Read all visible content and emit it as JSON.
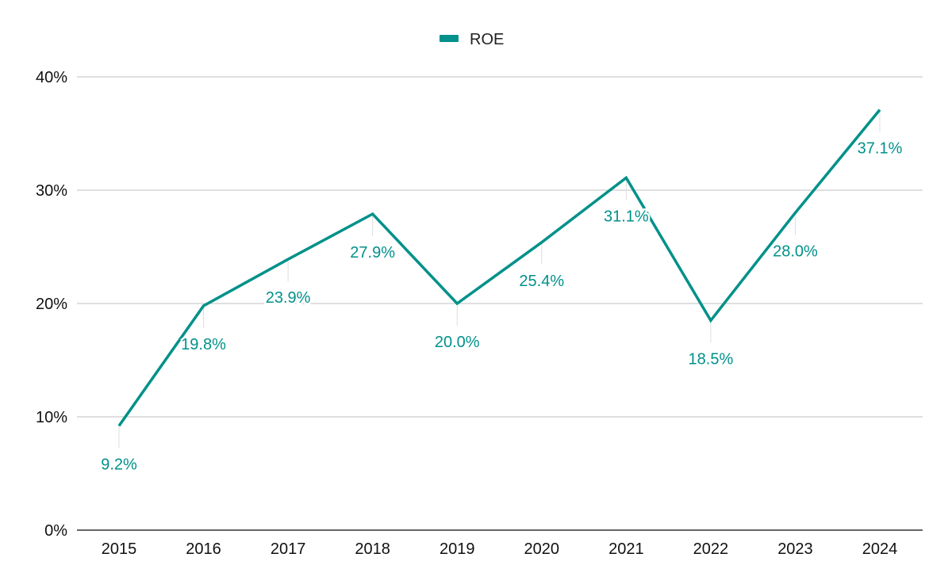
{
  "chart_data": {
    "type": "line",
    "categories": [
      "2015",
      "2016",
      "2017",
      "2018",
      "2019",
      "2020",
      "2021",
      "2022",
      "2023",
      "2024"
    ],
    "series": [
      {
        "name": "ROE",
        "values": [
          9.2,
          19.8,
          23.9,
          27.9,
          20.0,
          25.4,
          31.1,
          18.5,
          28.0,
          37.1
        ],
        "labels": [
          "9.2%",
          "19.8%",
          "23.9%",
          "27.9%",
          "20.0%",
          "25.4%",
          "31.1%",
          "18.5%",
          "28.0%",
          "37.1%"
        ],
        "color": "#00918a"
      }
    ],
    "ylim": [
      0,
      40
    ],
    "yticks": [
      0,
      10,
      20,
      30,
      40
    ],
    "ytick_labels": [
      "0%",
      "10%",
      "20%",
      "30%",
      "40%"
    ],
    "grid": true,
    "legend_position": "top-center",
    "title": "",
    "xlabel": "",
    "ylabel": ""
  }
}
